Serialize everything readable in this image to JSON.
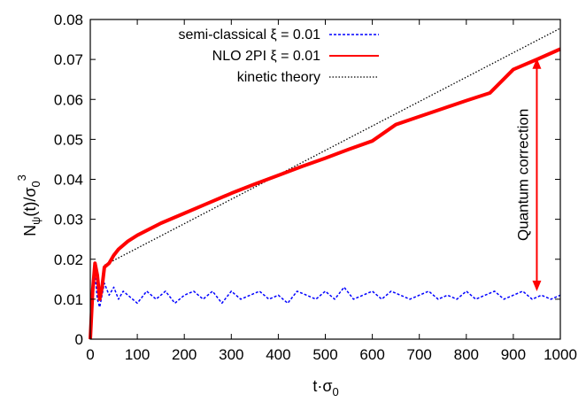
{
  "chart_data": {
    "type": "line",
    "xlabel_main": "t·σ",
    "xlabel_sub": "0",
    "ylabel_main": "N",
    "ylabel_sub": "ψ",
    "ylabel_mid": "(t)/σ",
    "ylabel_sub2": "0",
    "ylabel_sup": "3",
    "xlim": [
      0,
      1000
    ],
    "ylim": [
      0,
      0.08
    ],
    "xticks": [
      0,
      100,
      200,
      300,
      400,
      500,
      600,
      700,
      800,
      900,
      1000
    ],
    "yticks": [
      0,
      0.01,
      0.02,
      0.03,
      0.04,
      0.05,
      0.06,
      0.07,
      0.08
    ],
    "xtick_labels": [
      "0",
      "100",
      "200",
      "300",
      "400",
      "500",
      "600",
      "700",
      "800",
      "900",
      "1000"
    ],
    "ytick_labels": [
      "0",
      "0.01",
      "0.02",
      "0.03",
      "0.04",
      "0.05",
      "0.06",
      "0.07",
      "0.08"
    ],
    "grid": false,
    "legend_position": "top-center",
    "series": [
      {
        "name": "semi-classical ξ = 0.01",
        "color": "#0000ff",
        "style": "dashed",
        "x": [
          0,
          5,
          10,
          15,
          20,
          25,
          30,
          40,
          50,
          60,
          70,
          80,
          100,
          120,
          140,
          160,
          180,
          200,
          220,
          240,
          260,
          280,
          300,
          320,
          340,
          360,
          380,
          400,
          420,
          440,
          460,
          480,
          500,
          520,
          540,
          560,
          580,
          600,
          620,
          640,
          660,
          680,
          700,
          720,
          740,
          760,
          780,
          800,
          820,
          840,
          860,
          880,
          900,
          920,
          940,
          960,
          980,
          1000
        ],
        "y": [
          0,
          0.012,
          0.016,
          0.01,
          0.008,
          0.011,
          0.014,
          0.011,
          0.013,
          0.01,
          0.012,
          0.011,
          0.009,
          0.012,
          0.01,
          0.012,
          0.009,
          0.011,
          0.012,
          0.01,
          0.012,
          0.009,
          0.012,
          0.01,
          0.011,
          0.012,
          0.01,
          0.011,
          0.009,
          0.012,
          0.011,
          0.01,
          0.012,
          0.01,
          0.013,
          0.01,
          0.011,
          0.012,
          0.01,
          0.012,
          0.011,
          0.01,
          0.011,
          0.012,
          0.01,
          0.011,
          0.01,
          0.012,
          0.01,
          0.011,
          0.012,
          0.01,
          0.011,
          0.012,
          0.01,
          0.011,
          0.01,
          0.011
        ]
      },
      {
        "name": "NLO 2PI ξ = 0.01",
        "color": "#ff0000",
        "style": "solid",
        "x": [
          0,
          5,
          10,
          15,
          20,
          25,
          30,
          40,
          50,
          60,
          80,
          100,
          150,
          200,
          250,
          300,
          350,
          400,
          450,
          500,
          550,
          600,
          650,
          700,
          750,
          800,
          850,
          900,
          950,
          1000
        ],
        "y": [
          0,
          0.012,
          0.019,
          0.016,
          0.01,
          0.013,
          0.018,
          0.019,
          0.021,
          0.0225,
          0.0245,
          0.026,
          0.029,
          0.0315,
          0.034,
          0.0365,
          0.0388,
          0.041,
          0.0432,
          0.0453,
          0.0475,
          0.0496,
          0.0537,
          0.0557,
          0.0577,
          0.0597,
          0.0616,
          0.0675,
          0.07,
          0.0726
        ]
      },
      {
        "name": "kinetic theory",
        "color": "#000000",
        "style": "dotted",
        "x": [
          30,
          1000
        ],
        "y": [
          0.0185,
          0.0778
        ]
      }
    ],
    "annotation": {
      "text": "Quantum correction",
      "x": 950,
      "y_from": 0.012,
      "y_to": 0.0703,
      "color": "#ff0000"
    }
  }
}
